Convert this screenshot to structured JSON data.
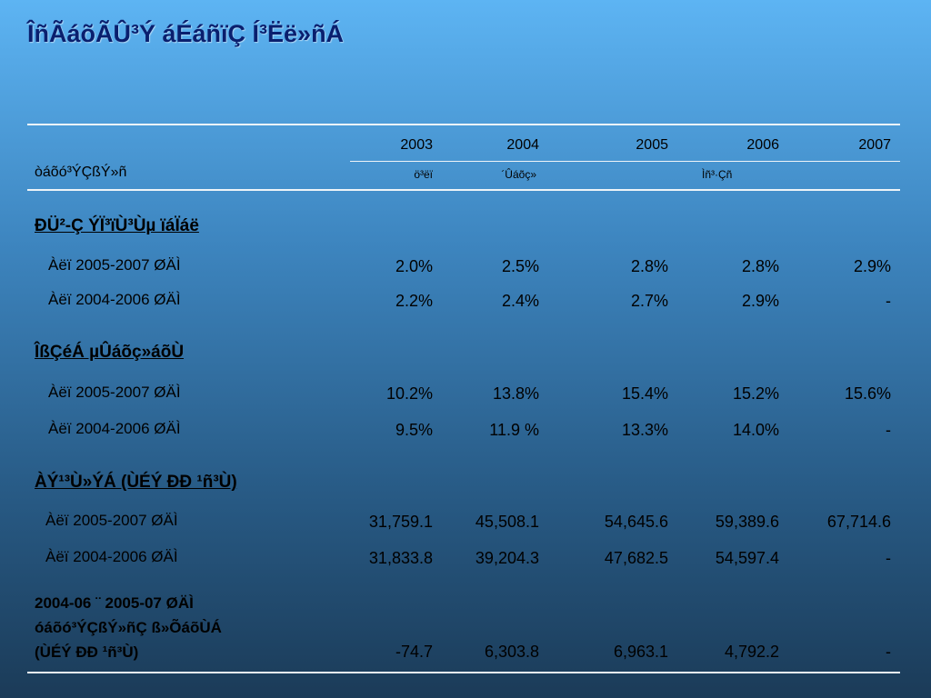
{
  "title": "ÎñÃáõÃÛ³Ý áÉáñïÇ Í³Ëë»ñÁ",
  "table": {
    "row_header": "òáõó³ÝÇßÝ»ñ",
    "years": [
      "2003",
      "2004",
      "2005",
      "2006",
      "2007"
    ],
    "subheaders": [
      "ö³ëï",
      "´Ûáõç»",
      "Ìñ³·Çñ"
    ],
    "sections": [
      {
        "title": "ÐÜ²-Ç ÝÏ³ïÙ³Ùµ ïáÏáë",
        "rows": [
          {
            "label": "Àëï 2005-2007 ØÄÌ",
            "values": [
              "2.0%",
              "2.5%",
              "2.8%",
              "2.8%",
              "2.9%"
            ]
          },
          {
            "label": "Àëï 2004-2006 ØÄÌ",
            "values": [
              "2.2%",
              "2.4%",
              "2.7%",
              "2.9%",
              "-"
            ]
          }
        ]
      },
      {
        "title": "ÎßÇéÁ µÛáõç»áõÙ",
        "rows": [
          {
            "label": "Àëï 2005-2007 ØÄÌ",
            "values": [
              "10.2%",
              "13.8%",
              "15.4%",
              "15.2%",
              "15.6%"
            ]
          },
          {
            "label": "Àëï 2004-2006 ØÄÌ",
            "values": [
              "9.5%",
              "11.9 %",
              "13.3%",
              "14.0%",
              "-"
            ]
          }
        ]
      },
      {
        "title": "ÀÝ¹³Ù»ÝÁ (ÙÉÝ ÐÐ ¹ñ³Ù)",
        "rows": [
          {
            "label": "Àëï 2005-2007 ØÄÌ",
            "values": [
              "31,759.1",
              "45,508.1",
              "54,645.6",
              "59,389.6",
              "67,714.6"
            ]
          },
          {
            "label": "Àëï 2004-2006 ØÄÌ",
            "values": [
              "31,833.8",
              "39,204.3",
              "47,682.5",
              "54,597.4",
              "-"
            ]
          }
        ]
      }
    ],
    "summary": {
      "label_lines": [
        "2004-06 ¨ 2005-07 ØÄÌ",
        "óáõó³ÝÇßÝ»ñÇ ß»ÕáõÙÁ",
        "(ÙÉÝ ÐÐ ¹ñ³Ù)"
      ],
      "values": [
        "-74.7",
        "6,303.8",
        "6,963.1",
        "4,792.2",
        "-"
      ]
    }
  }
}
